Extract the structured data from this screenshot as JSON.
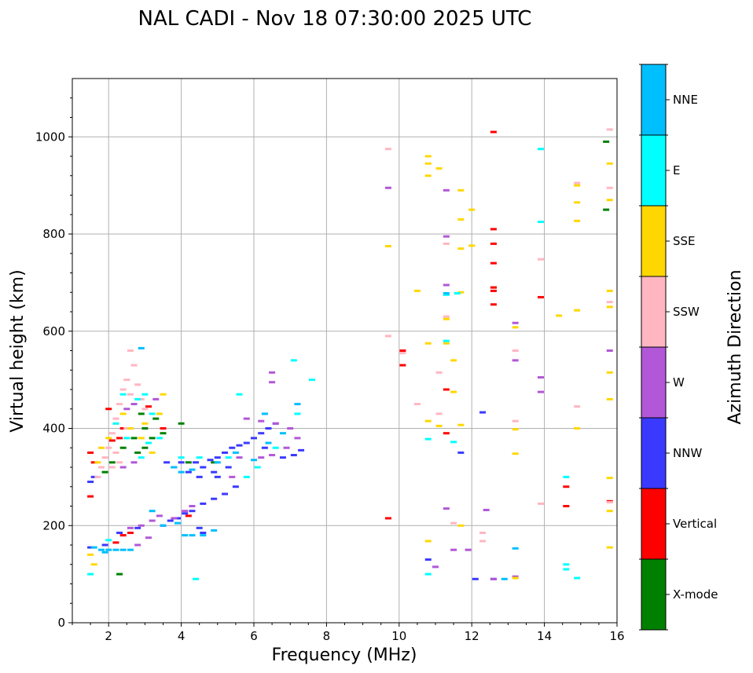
{
  "chart_data": {
    "type": "scatter",
    "title": "NAL CADI - Nov 18 07:30:00 2025 UTC",
    "xlabel": "Frequency (MHz)",
    "ylabel": "Virtual height (km)",
    "xlim": [
      1,
      16
    ],
    "ylim": [
      0,
      1120
    ],
    "xticks": [
      2,
      4,
      6,
      8,
      10,
      12,
      14,
      16
    ],
    "yticks": [
      0,
      200,
      400,
      600,
      800,
      1000
    ],
    "grid": true,
    "colorbar": {
      "title": "Azimuth Direction",
      "categories": [
        {
          "name": "X-mode",
          "color": "#008000"
        },
        {
          "name": "Vertical",
          "color": "#ff0000"
        },
        {
          "name": "NNW",
          "color": "#3a3aff"
        },
        {
          "name": "W",
          "color": "#b257d8"
        },
        {
          "name": "SSW",
          "color": "#ffb6c1"
        },
        {
          "name": "SSE",
          "color": "#ffd700"
        },
        {
          "name": "E",
          "color": "#00ffff"
        },
        {
          "name": "NNE",
          "color": "#00bfff"
        }
      ]
    },
    "series": [
      {
        "name": "X-mode",
        "points": [
          [
            1.9,
            310
          ],
          [
            2.1,
            330
          ],
          [
            2.4,
            360
          ],
          [
            2.8,
            350
          ],
          [
            3.0,
            400
          ],
          [
            3.2,
            380
          ],
          [
            3.3,
            420
          ],
          [
            2.9,
            430
          ],
          [
            3.5,
            390
          ],
          [
            4.0,
            410
          ],
          [
            4.2,
            330
          ],
          [
            4.9,
            330
          ],
          [
            12.6,
            690
          ],
          [
            15.7,
            990
          ],
          [
            15.7,
            850
          ],
          [
            2.3,
            100
          ],
          [
            3.0,
            360
          ],
          [
            2.7,
            380
          ]
        ]
      },
      {
        "name": "Vertical",
        "points": [
          [
            1.5,
            350
          ],
          [
            1.6,
            330
          ],
          [
            1.5,
            260
          ],
          [
            2.4,
            400
          ],
          [
            2.1,
            375
          ],
          [
            2.0,
            440
          ],
          [
            3.1,
            445
          ],
          [
            2.3,
            380
          ],
          [
            3.5,
            400
          ],
          [
            4.2,
            220
          ],
          [
            10.1,
            560
          ],
          [
            10.1,
            530
          ],
          [
            11.3,
            480
          ],
          [
            11.3,
            390
          ],
          [
            12.6,
            1010
          ],
          [
            12.6,
            810
          ],
          [
            12.6,
            780
          ],
          [
            12.6,
            740
          ],
          [
            12.6,
            690
          ],
          [
            12.6,
            655
          ],
          [
            13.9,
            670
          ],
          [
            14.6,
            280
          ],
          [
            14.6,
            240
          ],
          [
            15.8,
            250
          ],
          [
            2.4,
            180
          ],
          [
            2.6,
            185
          ],
          [
            2.2,
            165
          ],
          [
            9.7,
            215
          ],
          [
            12.6,
            683
          ]
        ]
      },
      {
        "name": "NNW",
        "points": [
          [
            4.0,
            330
          ],
          [
            4.2,
            310
          ],
          [
            4.4,
            330
          ],
          [
            4.6,
            320
          ],
          [
            4.8,
            335
          ],
          [
            5.0,
            340
          ],
          [
            5.2,
            350
          ],
          [
            5.4,
            360
          ],
          [
            5.6,
            365
          ],
          [
            5.8,
            370
          ],
          [
            6.0,
            380
          ],
          [
            6.2,
            390
          ],
          [
            6.4,
            400
          ],
          [
            6.6,
            410
          ],
          [
            4.5,
            300
          ],
          [
            4.9,
            310
          ],
          [
            5.3,
            320
          ],
          [
            3.8,
            320
          ],
          [
            3.6,
            330
          ],
          [
            3.5,
            200
          ],
          [
            3.7,
            210
          ],
          [
            3.9,
            215
          ],
          [
            4.1,
            225
          ],
          [
            4.3,
            230
          ],
          [
            4.6,
            245
          ],
          [
            4.9,
            255
          ],
          [
            5.2,
            265
          ],
          [
            5.5,
            280
          ],
          [
            1.5,
            290
          ],
          [
            1.6,
            300
          ],
          [
            1.5,
            155
          ],
          [
            1.9,
            160
          ],
          [
            2.3,
            185
          ],
          [
            2.8,
            195
          ],
          [
            4.5,
            195
          ],
          [
            4.6,
            185
          ],
          [
            10.8,
            130
          ],
          [
            12.1,
            90
          ],
          [
            12.6,
            90
          ],
          [
            12.3,
            433
          ],
          [
            11.7,
            350
          ],
          [
            6.8,
            340
          ],
          [
            7.1,
            345
          ],
          [
            7.3,
            355
          ],
          [
            6.3,
            360
          ],
          [
            5.0,
            300
          ]
        ]
      },
      {
        "name": "W",
        "points": [
          [
            2.6,
            195
          ],
          [
            2.9,
            200
          ],
          [
            3.2,
            210
          ],
          [
            3.4,
            220
          ],
          [
            3.8,
            215
          ],
          [
            4.1,
            230
          ],
          [
            4.3,
            240
          ],
          [
            2.8,
            160
          ],
          [
            3.1,
            175
          ],
          [
            5.4,
            300
          ],
          [
            5.6,
            340
          ],
          [
            6.2,
            340
          ],
          [
            6.5,
            345
          ],
          [
            6.9,
            360
          ],
          [
            7.2,
            380
          ],
          [
            7.0,
            400
          ],
          [
            6.6,
            410
          ],
          [
            6.2,
            415
          ],
          [
            5.8,
            420
          ],
          [
            2.7,
            450
          ],
          [
            2.5,
            440
          ],
          [
            3.3,
            460
          ],
          [
            13.2,
            617
          ],
          [
            13.2,
            540
          ],
          [
            13.9,
            505
          ],
          [
            13.9,
            475
          ],
          [
            15.8,
            560
          ],
          [
            11.3,
            795
          ],
          [
            11.3,
            695
          ],
          [
            11.3,
            890
          ],
          [
            11.3,
            235
          ],
          [
            11.5,
            150
          ],
          [
            11.9,
            150
          ],
          [
            12.4,
            232
          ],
          [
            11.0,
            115
          ],
          [
            13.2,
            95
          ],
          [
            12.6,
            90
          ],
          [
            6.5,
            495
          ],
          [
            6.5,
            515
          ],
          [
            9.7,
            895
          ],
          [
            2.7,
            330
          ],
          [
            2.4,
            320
          ]
        ]
      },
      {
        "name": "SSW",
        "points": [
          [
            2.6,
            560
          ],
          [
            2.7,
            530
          ],
          [
            2.5,
            500
          ],
          [
            2.4,
            480
          ],
          [
            2.3,
            450
          ],
          [
            2.2,
            420
          ],
          [
            2.1,
            390
          ],
          [
            2.0,
            360
          ],
          [
            1.9,
            340
          ],
          [
            1.8,
            320
          ],
          [
            1.7,
            300
          ],
          [
            2.6,
            470
          ],
          [
            2.8,
            490
          ],
          [
            2.9,
            460
          ],
          [
            3.0,
            440
          ],
          [
            2.2,
            350
          ],
          [
            2.1,
            320
          ],
          [
            2.3,
            330
          ],
          [
            2.5,
            400
          ],
          [
            9.7,
            975
          ],
          [
            9.7,
            590
          ],
          [
            10.1,
            555
          ],
          [
            10.5,
            450
          ],
          [
            11.1,
            515
          ],
          [
            11.1,
            430
          ],
          [
            11.3,
            780
          ],
          [
            11.3,
            630
          ],
          [
            11.5,
            205
          ],
          [
            12.3,
            185
          ],
          [
            12.3,
            168
          ],
          [
            13.2,
            560
          ],
          [
            13.2,
            415
          ],
          [
            13.9,
            748
          ],
          [
            13.9,
            245
          ],
          [
            14.9,
            905
          ],
          [
            14.9,
            445
          ],
          [
            15.8,
            1015
          ],
          [
            15.8,
            895
          ],
          [
            15.8,
            660
          ],
          [
            15.8,
            248
          ]
        ]
      },
      {
        "name": "SSE",
        "points": [
          [
            1.7,
            330
          ],
          [
            1.8,
            360
          ],
          [
            2.0,
            380
          ],
          [
            2.2,
            410
          ],
          [
            2.4,
            430
          ],
          [
            2.6,
            400
          ],
          [
            2.9,
            380
          ],
          [
            3.0,
            410
          ],
          [
            3.2,
            350
          ],
          [
            3.4,
            430
          ],
          [
            3.5,
            470
          ],
          [
            1.5,
            140
          ],
          [
            1.6,
            120
          ],
          [
            9.7,
            775
          ],
          [
            10.5,
            683
          ],
          [
            10.8,
            960
          ],
          [
            10.8,
            945
          ],
          [
            10.8,
            920
          ],
          [
            10.8,
            575
          ],
          [
            10.8,
            168
          ],
          [
            11.1,
            935
          ],
          [
            11.1,
            405
          ],
          [
            11.3,
            575
          ],
          [
            11.3,
            625
          ],
          [
            11.5,
            475
          ],
          [
            11.5,
            540
          ],
          [
            11.7,
            890
          ],
          [
            11.7,
            830
          ],
          [
            11.7,
            770
          ],
          [
            11.7,
            680
          ],
          [
            11.7,
            200
          ],
          [
            11.7,
            407
          ],
          [
            12.0,
            850
          ],
          [
            12.0,
            776
          ],
          [
            13.2,
            608
          ],
          [
            13.2,
            398
          ],
          [
            13.2,
            348
          ],
          [
            13.2,
            92
          ],
          [
            14.4,
            632
          ],
          [
            14.9,
            900
          ],
          [
            14.9,
            865
          ],
          [
            14.9,
            827
          ],
          [
            14.9,
            643
          ],
          [
            14.9,
            400
          ],
          [
            15.8,
            945
          ],
          [
            15.8,
            870
          ],
          [
            15.8,
            683
          ],
          [
            15.8,
            650
          ],
          [
            15.8,
            515
          ],
          [
            15.8,
            460
          ],
          [
            15.8,
            298
          ],
          [
            15.8,
            230
          ],
          [
            15.8,
            155
          ],
          [
            10.8,
            415
          ]
        ]
      },
      {
        "name": "E",
        "points": [
          [
            2.4,
            470
          ],
          [
            2.8,
            460
          ],
          [
            3.0,
            470
          ],
          [
            3.2,
            430
          ],
          [
            2.2,
            410
          ],
          [
            2.5,
            380
          ],
          [
            2.9,
            340
          ],
          [
            3.1,
            370
          ],
          [
            3.4,
            380
          ],
          [
            4.0,
            340
          ],
          [
            4.5,
            340
          ],
          [
            5.3,
            340
          ],
          [
            5.8,
            300
          ],
          [
            6.1,
            320
          ],
          [
            6.6,
            360
          ],
          [
            7.2,
            430
          ],
          [
            7.6,
            500
          ],
          [
            5.6,
            470
          ],
          [
            7.1,
            540
          ],
          [
            1.5,
            100
          ],
          [
            4.4,
            90
          ],
          [
            10.8,
            378
          ],
          [
            10.8,
            100
          ],
          [
            11.3,
            675
          ],
          [
            11.5,
            372
          ],
          [
            11.3,
            580
          ],
          [
            13.9,
            975
          ],
          [
            13.9,
            825
          ],
          [
            14.6,
            110
          ],
          [
            14.6,
            300
          ],
          [
            14.6,
            120
          ],
          [
            14.9,
            92
          ],
          [
            2.0,
            170
          ],
          [
            11.6,
            678
          ]
        ]
      },
      {
        "name": "NNE",
        "points": [
          [
            1.6,
            155
          ],
          [
            1.8,
            150
          ],
          [
            2.0,
            150
          ],
          [
            2.2,
            150
          ],
          [
            2.4,
            150
          ],
          [
            2.6,
            150
          ],
          [
            1.9,
            145
          ],
          [
            3.8,
            320
          ],
          [
            4.0,
            310
          ],
          [
            4.3,
            315
          ],
          [
            5.0,
            330
          ],
          [
            5.5,
            350
          ],
          [
            6.0,
            335
          ],
          [
            6.4,
            370
          ],
          [
            6.8,
            390
          ],
          [
            7.2,
            450
          ],
          [
            4.1,
            180
          ],
          [
            4.3,
            180
          ],
          [
            4.6,
            180
          ],
          [
            4.9,
            190
          ],
          [
            3.2,
            230
          ],
          [
            6.3,
            430
          ],
          [
            13.2,
            153
          ],
          [
            12.9,
            90
          ],
          [
            11.3,
            678
          ],
          [
            2.9,
            565
          ],
          [
            3.5,
            200
          ],
          [
            3.9,
            205
          ]
        ]
      }
    ]
  }
}
